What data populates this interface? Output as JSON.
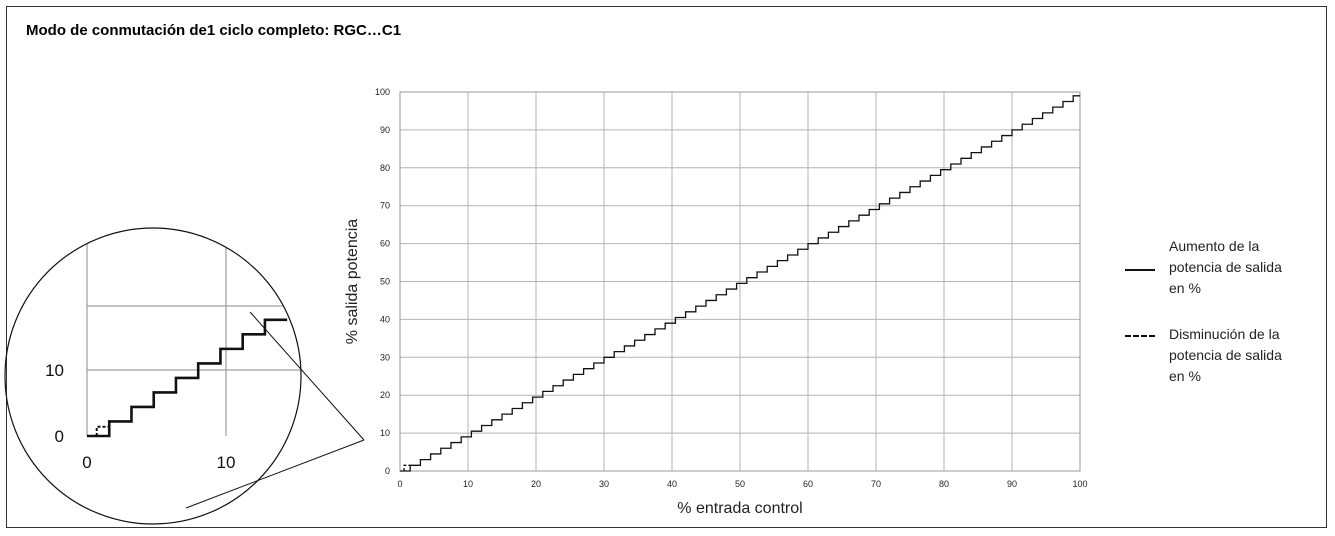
{
  "title": "Modo de conmutación de1 ciclo completo: RGC…C1",
  "chart_data": {
    "type": "line",
    "xlabel": "% entrada control",
    "ylabel": "% salida potencia",
    "xlim": [
      0,
      100
    ],
    "ylim": [
      0,
      100
    ],
    "xticks": [
      "0",
      "10",
      "20",
      "30",
      "40",
      "50",
      "60",
      "70",
      "80",
      "90",
      "100"
    ],
    "yticks": [
      "0",
      "10",
      "20",
      "30",
      "40",
      "50",
      "60",
      "70",
      "80",
      "90",
      "100"
    ],
    "grid": true,
    "legend_position": "right",
    "series": [
      {
        "name": "Aumento de la potencia de salida en %",
        "style": "solid",
        "step_pattern": "staircase",
        "step_x": 1.5,
        "step_y": 1.5
      },
      {
        "name": "Disminución de la potencia de salida en %",
        "style": "dashed",
        "step_pattern": "staircase",
        "step_x": 1.5,
        "step_y": 1.5
      }
    ],
    "inset": {
      "description_visible": false,
      "xticks": [
        "0",
        "10"
      ],
      "yticks": [
        "0",
        "10"
      ]
    }
  },
  "legend": [
    {
      "lines": [
        "Aumento de la",
        "potencia de salida",
        "en %"
      ],
      "style": "solid"
    },
    {
      "lines": [
        "Disminución de la",
        "potencia de salida",
        "en %"
      ],
      "style": "dashed"
    }
  ],
  "colors": {
    "line": "#111111",
    "grid": "#b4b4b4",
    "frame": "#333333"
  }
}
